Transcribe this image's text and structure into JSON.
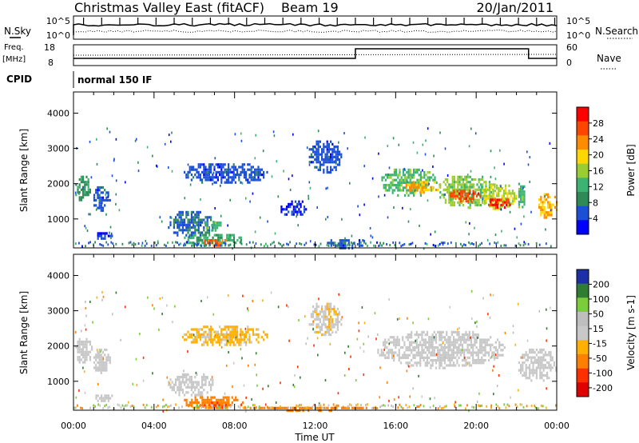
{
  "header": {
    "title": "Christmas Valley East (fitACF)",
    "beam": "Beam 19",
    "date": "20/Jan/2011"
  },
  "top_panels": {
    "nsky_label": "N.Sky",
    "nsky_ticks": [
      "10^5",
      "10^0"
    ],
    "nsearch_label": "N.Search",
    "nsearch_ticks": [
      "10^5",
      "10^0"
    ],
    "freq_label_line1": "Freq.",
    "freq_label_line2": "[MHz]",
    "freq_ticks": [
      "18",
      "8"
    ],
    "nave_label": "Nave",
    "nave_ticks": [
      "60",
      "0"
    ],
    "cpid_label": "CPID",
    "cpid_value": "normal 150 IF"
  },
  "colors": {
    "power_scale": [
      "#0000ff",
      "#1a4fd6",
      "#2e8b57",
      "#3cb371",
      "#9acd32",
      "#ffd700",
      "#ff8c00",
      "#ff4500",
      "#ff0000"
    ],
    "velocity_scale": [
      "#1c2fa8",
      "#2e7d32",
      "#7ccd3a",
      "#bebebe",
      "#c8c8c8",
      "#ffb000",
      "#ff8000",
      "#ff3000",
      "#e00000"
    ]
  },
  "chart_data": [
    {
      "type": "heatmap",
      "name": "power",
      "ylabel": "Slant Range [km]",
      "ylim": [
        180,
        4600
      ],
      "yticks": [
        "1000",
        "2000",
        "3000",
        "4000"
      ],
      "xlim_hours": [
        0,
        24
      ],
      "xticks": [
        "00:00",
        "04:00",
        "08:00",
        "12:00",
        "16:00",
        "20:00",
        "00:00"
      ],
      "colorbar_label": "Power [dB]",
      "colorbar_ticks": [
        "28",
        "24",
        "20",
        "16",
        "12",
        "8",
        "4"
      ],
      "colorbar_range": [
        0,
        30
      ],
      "regions": [
        {
          "t": [
            0.0,
            0.9
          ],
          "r": [
            1500,
            2300
          ],
          "v": 9
        },
        {
          "t": [
            0.9,
            1.8
          ],
          "r": [
            1250,
            2000
          ],
          "v": 5
        },
        {
          "t": [
            1.0,
            2.0
          ],
          "r": [
            450,
            700
          ],
          "v": 4
        },
        {
          "t": [
            4.6,
            7.0
          ],
          "r": [
            500,
            1300
          ],
          "v": 6
        },
        {
          "t": [
            6.4,
            7.4
          ],
          "r": [
            700,
            1000
          ],
          "v": 12
        },
        {
          "t": [
            5.4,
            8.4
          ],
          "r": [
            220,
            650
          ],
          "v": 11
        },
        {
          "t": [
            6.4,
            7.6
          ],
          "r": [
            250,
            500
          ],
          "v": 24
        },
        {
          "t": [
            5.3,
            9.6
          ],
          "r": [
            2000,
            2650
          ],
          "v": 5
        },
        {
          "t": [
            10.2,
            11.6
          ],
          "r": [
            1100,
            1600
          ],
          "v": 3
        },
        {
          "t": [
            11.6,
            13.3
          ],
          "r": [
            2300,
            3300
          ],
          "v": 5
        },
        {
          "t": [
            12.5,
            14.5
          ],
          "r": [
            200,
            500
          ],
          "v": 5
        },
        {
          "t": [
            15.2,
            18.0
          ],
          "r": [
            1650,
            2500
          ],
          "v": 12
        },
        {
          "t": [
            16.4,
            18.2
          ],
          "r": [
            1750,
            2150
          ],
          "v": 20
        },
        {
          "t": [
            18.0,
            21.0
          ],
          "r": [
            1350,
            2300
          ],
          "v": 14
        },
        {
          "t": [
            18.5,
            20.2
          ],
          "r": [
            1500,
            1900
          ],
          "v": 25
        },
        {
          "t": [
            20.2,
            22.0
          ],
          "r": [
            1300,
            2050
          ],
          "v": 16
        },
        {
          "t": [
            20.5,
            21.8
          ],
          "r": [
            1350,
            1650
          ],
          "v": 27
        },
        {
          "t": [
            22.0,
            22.4
          ],
          "r": [
            1300,
            2100
          ],
          "v": 12
        },
        {
          "t": [
            23.0,
            24.0
          ],
          "r": [
            1000,
            1800
          ],
          "v": 20
        }
      ]
    },
    {
      "type": "heatmap",
      "name": "velocity",
      "ylabel": "Slant Range [km]",
      "ylim": [
        180,
        4600
      ],
      "yticks": [
        "1000",
        "2000",
        "3000",
        "4000"
      ],
      "xlabel": "Time UT",
      "xlim_hours": [
        0,
        24
      ],
      "xticks": [
        "00:00",
        "04:00",
        "08:00",
        "12:00",
        "16:00",
        "20:00",
        "00:00"
      ],
      "colorbar_label": "Velocity [m s-1]",
      "colorbar_ticks": [
        "200",
        "100",
        "50",
        "15",
        "-15",
        "-50",
        "-100",
        "-200"
      ],
      "colorbar_range": [
        -250,
        250
      ],
      "regions": [
        {
          "t": [
            0.0,
            0.9
          ],
          "r": [
            1500,
            2300
          ],
          "v": 0
        },
        {
          "t": [
            0.9,
            1.8
          ],
          "r": [
            1250,
            2000
          ],
          "v": 0
        },
        {
          "t": [
            1.0,
            2.0
          ],
          "r": [
            450,
            700
          ],
          "v": 5
        },
        {
          "t": [
            4.6,
            7.0
          ],
          "r": [
            600,
            1300
          ],
          "v": 0
        },
        {
          "t": [
            5.4,
            8.4
          ],
          "r": [
            220,
            650
          ],
          "v": -80
        },
        {
          "t": [
            6.4,
            7.6
          ],
          "r": [
            250,
            500
          ],
          "v": -100
        },
        {
          "t": [
            5.3,
            9.6
          ],
          "r": [
            2000,
            2650
          ],
          "v": -20
        },
        {
          "t": [
            8.4,
            15.0
          ],
          "r": [
            200,
            350
          ],
          "v": -60
        },
        {
          "t": [
            11.6,
            13.3
          ],
          "r": [
            2300,
            3300
          ],
          "v": -10
        },
        {
          "t": [
            15.0,
            21.5
          ],
          "r": [
            1400,
            2500
          ],
          "v": 0
        },
        {
          "t": [
            22.0,
            24.0
          ],
          "r": [
            1000,
            2000
          ],
          "v": 0
        }
      ]
    }
  ]
}
